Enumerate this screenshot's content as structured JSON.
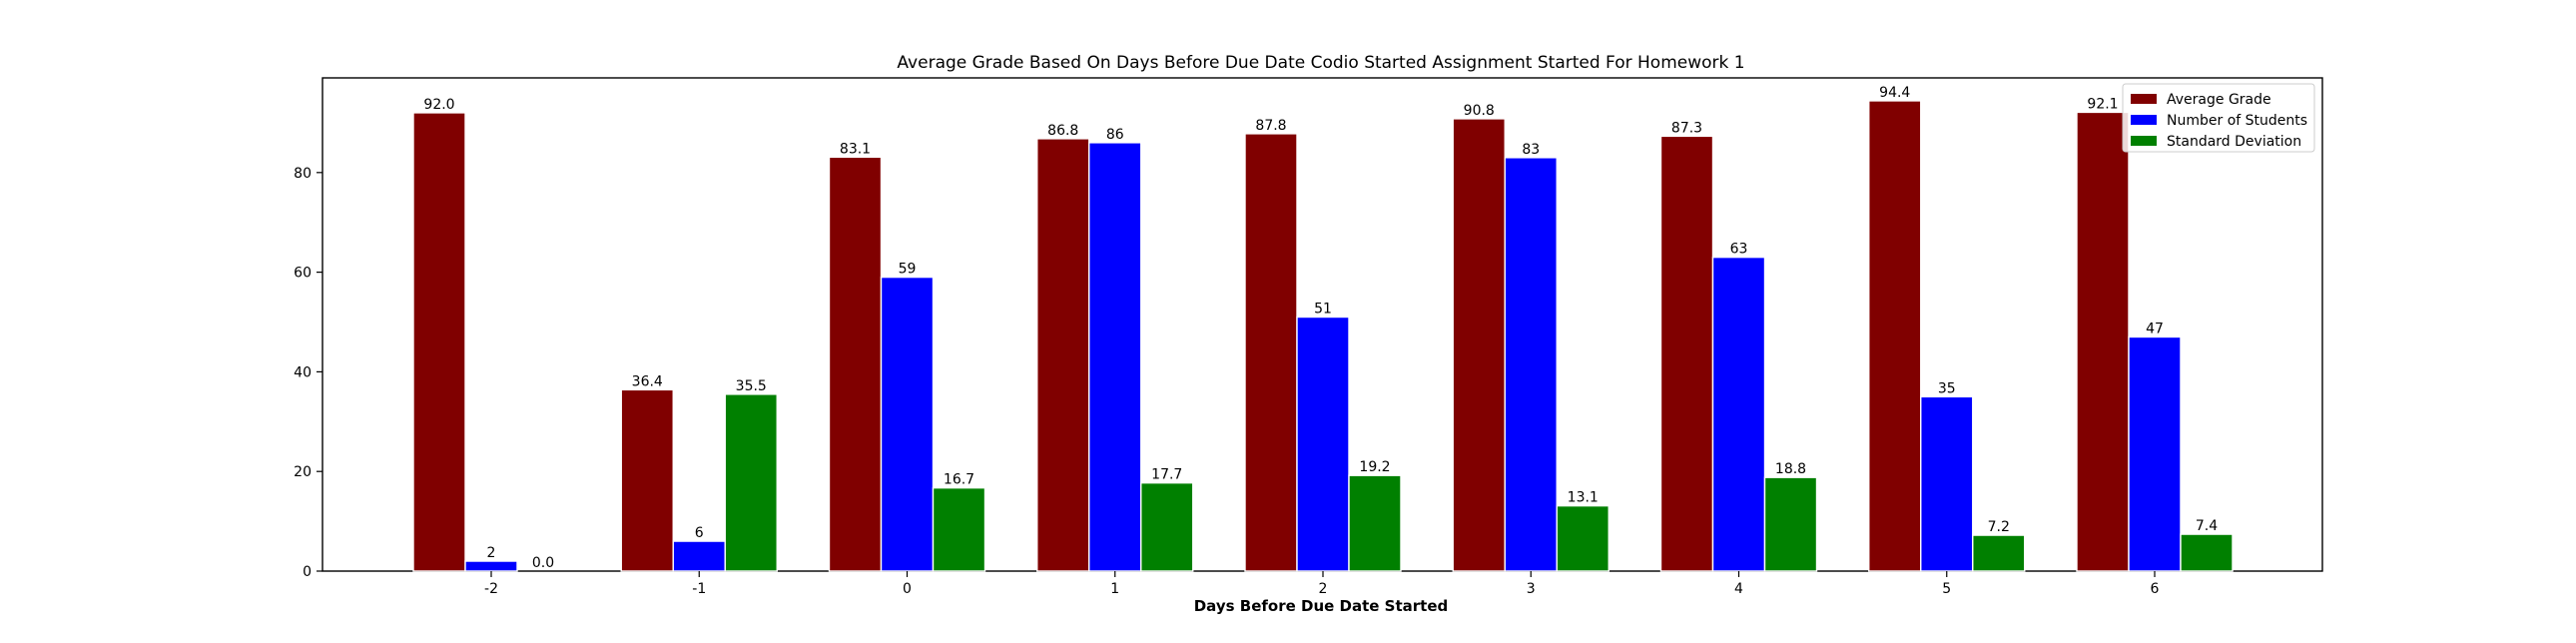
{
  "chart_data": {
    "type": "bar",
    "title": "Average Grade Based On Days Before Due Date Codio Started Assignment Started For Homework 1",
    "xlabel": "Days Before Due Date Started",
    "ylabel": "",
    "categories": [
      "-2",
      "-1",
      "0",
      "1",
      "2",
      "3",
      "4",
      "5",
      "6"
    ],
    "ylim": [
      0,
      99
    ],
    "yticks": [
      0,
      20,
      40,
      60,
      80
    ],
    "grid": false,
    "legend_position": "top-right",
    "series": [
      {
        "name": "Average Grade",
        "color": "#800000",
        "values": [
          92.0,
          36.4,
          83.1,
          86.8,
          87.8,
          90.8,
          87.3,
          94.4,
          92.1
        ],
        "labels": [
          "92.0",
          "36.4",
          "83.1",
          "86.8",
          "87.8",
          "90.8",
          "87.3",
          "94.4",
          "92.1"
        ]
      },
      {
        "name": "Number of Students",
        "color": "#0000ff",
        "values": [
          2,
          6,
          59,
          86,
          51,
          83,
          63,
          35,
          47
        ],
        "labels": [
          "2",
          "6",
          "59",
          "86",
          "51",
          "83",
          "63",
          "35",
          "47"
        ]
      },
      {
        "name": "Standard Deviation",
        "color": "#008000",
        "values": [
          0.0,
          35.5,
          16.7,
          17.7,
          19.2,
          13.1,
          18.8,
          7.2,
          7.4
        ],
        "labels": [
          "0.0",
          "35.5",
          "16.7",
          "17.7",
          "19.2",
          "13.1",
          "18.8",
          "7.2",
          "7.4"
        ]
      }
    ]
  }
}
